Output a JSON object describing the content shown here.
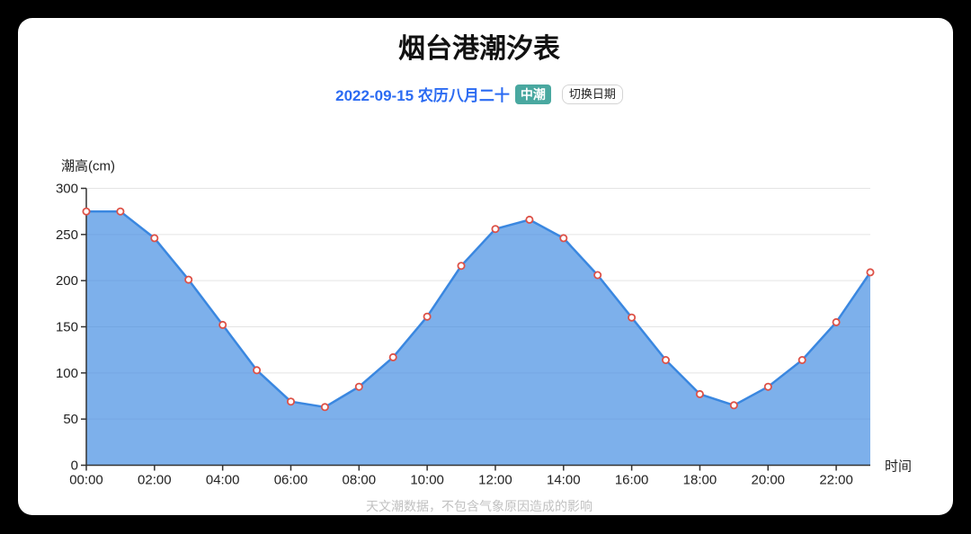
{
  "page": {
    "background": "#000000",
    "card_background": "#ffffff"
  },
  "header": {
    "title": "烟台港潮汐表"
  },
  "date_bar": {
    "date_text": "2022-09-15 农历八月二十",
    "tide_badge": "中潮",
    "switch_button": "切换日期",
    "date_color": "#2b6bf2",
    "badge_color": "#49a8a0"
  },
  "footer": {
    "note": "天文潮数据，不包含气象原因造成的影响"
  },
  "chart_data": {
    "type": "area",
    "title": "烟台港潮汐表",
    "ylabel": "潮高(cm)",
    "xlabel": "时间",
    "x": [
      "00:00",
      "01:00",
      "02:00",
      "03:00",
      "04:00",
      "05:00",
      "06:00",
      "07:00",
      "08:00",
      "09:00",
      "10:00",
      "11:00",
      "12:00",
      "13:00",
      "14:00",
      "15:00",
      "16:00",
      "17:00",
      "18:00",
      "19:00",
      "20:00",
      "21:00",
      "22:00",
      "23:00"
    ],
    "values": [
      275,
      275,
      246,
      201,
      152,
      103,
      69,
      63,
      85,
      117,
      161,
      216,
      256,
      266,
      246,
      206,
      160,
      114,
      77,
      65,
      85,
      114,
      155,
      209
    ],
    "ylim": [
      0,
      300
    ],
    "ytick_step": 50,
    "xtick_labels": [
      "00:00",
      "02:00",
      "04:00",
      "06:00",
      "08:00",
      "10:00",
      "12:00",
      "14:00",
      "16:00",
      "18:00",
      "20:00",
      "22:00"
    ],
    "grid": true,
    "legend": false,
    "colors": {
      "line": "#3a87e0",
      "fill": "rgba(58,135,224,0.66)",
      "point_fill": "#ffffff",
      "point_stroke": "#dd5147",
      "grid": "#e4e4e4",
      "axis": "#333333",
      "tick_label": "#222222"
    }
  }
}
